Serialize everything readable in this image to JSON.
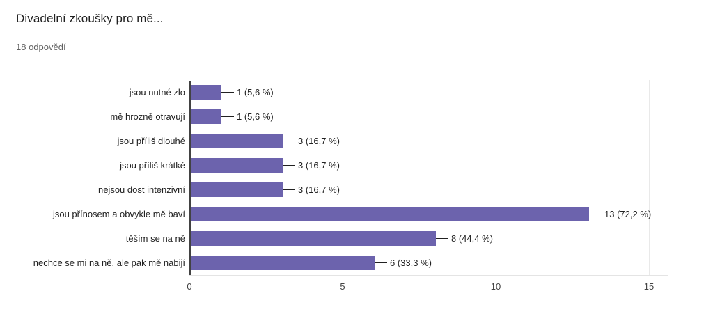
{
  "header": {
    "title": "Divadelní zkoušky pro mě...",
    "subtitle": "18 odpovědí"
  },
  "chart_data": {
    "type": "bar",
    "orientation": "horizontal",
    "title": "Divadelní zkoušky pro mě...",
    "subtitle": "18 odpovědí",
    "total_responses": 18,
    "categories": [
      "jsou nutné zlo",
      "mě hrozně otravují",
      "jsou příliš dlouhé",
      "jsou příliš krátké",
      "nejsou dost intenzivní",
      "jsou přínosem a obvykle mě baví",
      "těším se na ně",
      "nechce se mi na ně, ale pak mě nabijí"
    ],
    "values": [
      1,
      1,
      3,
      3,
      3,
      13,
      8,
      6
    ],
    "value_labels": [
      "1 (5,6 %)",
      "1 (5,6 %)",
      "3 (16,7 %)",
      "3 (16,7 %)",
      "3 (16,7 %)",
      "13 (72,2 %)",
      "8 (44,4 %)",
      "6 (33,3 %)"
    ],
    "x_ticks": [
      0,
      5,
      10,
      15
    ],
    "xlabel": "",
    "ylabel": "",
    "xlim": [
      0,
      15.6
    ],
    "grid": true,
    "legend": false,
    "colors": {
      "bar": "#6c63ad",
      "gridline": "#e9e9e9",
      "axis": "#424242",
      "label_text": "#212121",
      "tick_text": "#444444"
    }
  }
}
